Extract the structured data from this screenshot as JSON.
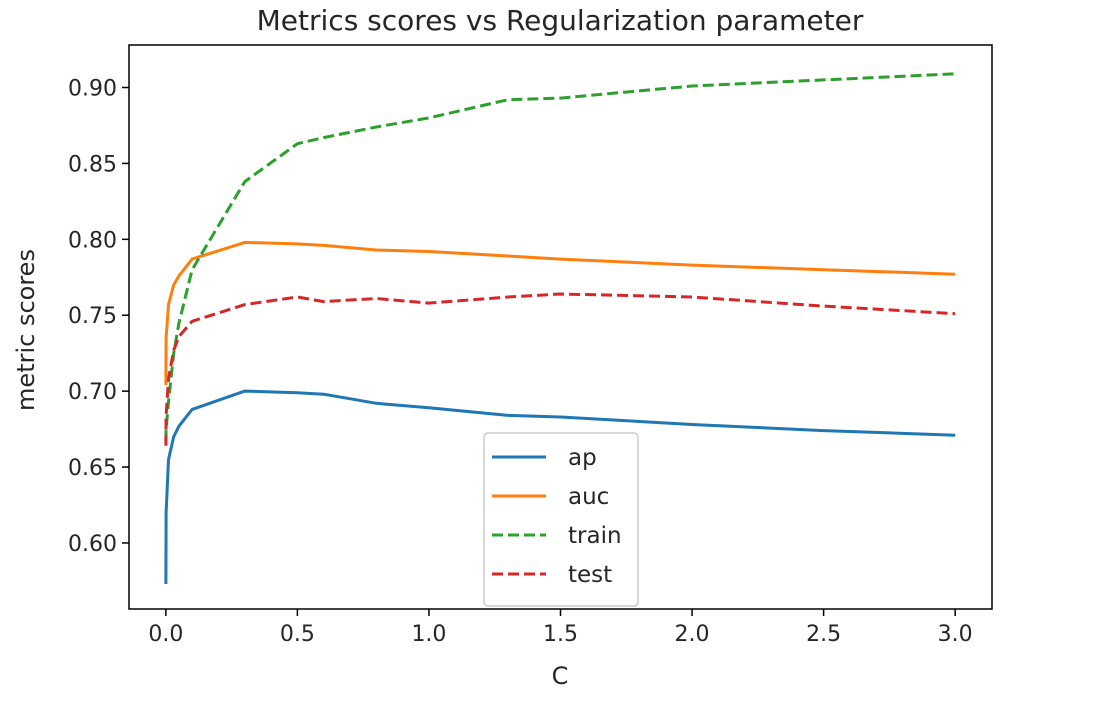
{
  "chart_data": {
    "type": "line",
    "title": "Metrics scores vs Regularization parameter",
    "xlabel": "C",
    "ylabel": "metric scores",
    "xlim": [
      -0.14,
      3.14
    ],
    "ylim": [
      0.5565,
      0.928
    ],
    "xticks": [
      "0.0",
      "0.5",
      "1.0",
      "1.5",
      "2.0",
      "2.5",
      "3.0"
    ],
    "yticks": [
      "0.60",
      "0.65",
      "0.70",
      "0.75",
      "0.80",
      "0.85",
      "0.90"
    ],
    "grid": false,
    "legend_position": "lower center",
    "series": [
      {
        "name": "ap",
        "color": "#1f77b4",
        "style": "solid",
        "x": [
          0.0001,
          0.001,
          0.01,
          0.03,
          0.05,
          0.1,
          0.3,
          0.5,
          0.6,
          0.8,
          1.0,
          1.3,
          1.5,
          2.0,
          2.5,
          3.0
        ],
        "y": [
          0.573,
          0.62,
          0.655,
          0.67,
          0.677,
          0.688,
          0.7,
          0.699,
          0.698,
          0.692,
          0.689,
          0.684,
          0.683,
          0.678,
          0.674,
          0.671
        ]
      },
      {
        "name": "auc",
        "color": "#ff7f0e",
        "style": "solid",
        "x": [
          0.0001,
          0.001,
          0.01,
          0.03,
          0.05,
          0.1,
          0.3,
          0.5,
          0.6,
          0.8,
          1.0,
          1.3,
          1.5,
          2.0,
          2.5,
          3.0
        ],
        "y": [
          0.704,
          0.735,
          0.757,
          0.77,
          0.776,
          0.787,
          0.798,
          0.797,
          0.796,
          0.793,
          0.792,
          0.789,
          0.787,
          0.783,
          0.78,
          0.777
        ]
      },
      {
        "name": "train",
        "color": "#2ca02c",
        "style": "dashed",
        "x": [
          0.0001,
          0.001,
          0.01,
          0.03,
          0.05,
          0.1,
          0.3,
          0.5,
          0.6,
          0.8,
          1.0,
          1.3,
          1.5,
          2.0,
          2.5,
          3.0
        ],
        "y": [
          0.667,
          0.675,
          0.693,
          0.725,
          0.745,
          0.78,
          0.838,
          0.863,
          0.867,
          0.874,
          0.88,
          0.892,
          0.893,
          0.901,
          0.905,
          0.909
        ]
      },
      {
        "name": "test",
        "color": "#d62728",
        "style": "dashed",
        "x": [
          0.0001,
          0.001,
          0.01,
          0.03,
          0.05,
          0.1,
          0.3,
          0.5,
          0.6,
          0.8,
          1.0,
          1.3,
          1.5,
          2.0,
          2.5,
          3.0
        ],
        "y": [
          0.664,
          0.684,
          0.708,
          0.727,
          0.736,
          0.746,
          0.757,
          0.762,
          0.759,
          0.761,
          0.758,
          0.762,
          0.764,
          0.762,
          0.756,
          0.751
        ]
      }
    ]
  }
}
